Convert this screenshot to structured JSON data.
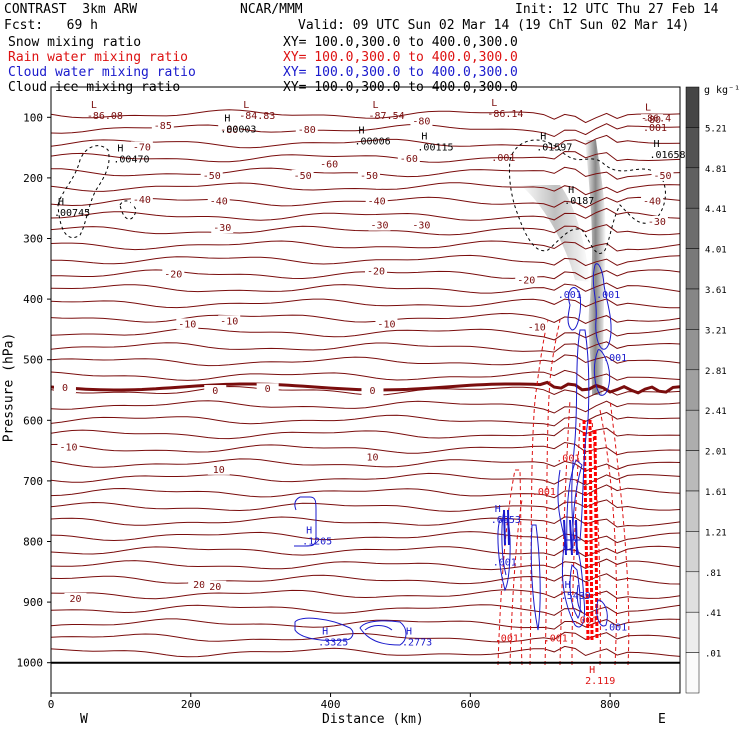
{
  "header": {
    "model": "CONTRAST  3km ARW",
    "org": "NCAR/MMM",
    "init": "Init: 12 UTC Thu 27 Feb 14",
    "fcst": "Fcst:   69 h",
    "valid": "Valid: 09 UTC Sun 02 Mar 14 (19 ChT Sun 02 Mar 14)"
  },
  "fields": [
    {
      "name": "Snow mixing ratio",
      "xy": "XY= 100.0,300.0 to 400.0,300.0",
      "color": "#000000"
    },
    {
      "name": "Rain water mixing ratio",
      "xy": "XY= 100.0,300.0 to 400.0,300.0",
      "color": "#dd1111"
    },
    {
      "name": "Cloud water mixing ratio",
      "xy": "XY= 100.0,300.0 to 400.0,300.0",
      "color": "#1a1acc"
    },
    {
      "name": "Cloud ice mixing ratio",
      "xy": "XY= 100.0,300.0 to 400.0,300.0",
      "color": "#000000"
    }
  ],
  "colorbar": {
    "unit": "g kg⁻¹",
    "labels": [
      "5.21",
      "4.81",
      "4.41",
      "4.01",
      "3.61",
      "3.21",
      "2.81",
      "2.41",
      "2.01",
      "1.61",
      "1.21",
      ".81",
      ".41",
      ".01"
    ]
  },
  "chart_data": {
    "type": "cross-section",
    "xlabel": "Distance (km)",
    "ylabel": "Pressure (hPa)",
    "xlim": [
      0,
      900
    ],
    "ylim": [
      1050,
      50
    ],
    "xticks": [
      "0",
      "200",
      "400",
      "600",
      "800"
    ],
    "xtick_values": [
      0,
      200,
      400,
      600,
      800
    ],
    "yticks": [
      "100",
      "200",
      "300",
      "400",
      "500",
      "600",
      "700",
      "800",
      "900",
      "1000"
    ],
    "ytick_values": [
      100,
      200,
      300,
      400,
      500,
      600,
      700,
      800,
      900,
      1000
    ],
    "west_label": "W",
    "east_label": "E",
    "temperature_contours": [
      {
        "label": "-80",
        "p": 110
      },
      {
        "label": "-70",
        "p": 155
      },
      {
        "label": "-60",
        "p": 178
      },
      {
        "label": "-50",
        "p": 205
      },
      {
        "label": "-40",
        "p": 240
      },
      {
        "label": "-30",
        "p": 285
      },
      {
        "label": "-20",
        "p": 350
      },
      {
        "label": "-10",
        "p": 420
      },
      {
        "label": "0",
        "p": 545
      },
      {
        "label": "10",
        "p": 640
      },
      {
        "label": "20",
        "p": 835
      }
    ],
    "contour_labels": [
      {
        "text": "-80",
        "x": 255,
        "p": 124
      },
      {
        "text": "-85",
        "x": 160,
        "p": 118
      },
      {
        "text": "-80",
        "x": 366,
        "p": 124
      },
      {
        "text": "-80",
        "x": 530,
        "p": 110
      },
      {
        "text": "-80",
        "x": 860,
        "p": 108
      },
      {
        "text": "-70",
        "x": 130,
        "p": 153
      },
      {
        "text": "-60",
        "x": 398,
        "p": 181
      },
      {
        "text": "-60",
        "x": 512,
        "p": 172
      },
      {
        "text": "-50",
        "x": 230,
        "p": 200
      },
      {
        "text": "-50",
        "x": 360,
        "p": 200
      },
      {
        "text": "-50",
        "x": 455,
        "p": 200
      },
      {
        "text": "-50",
        "x": 875,
        "p": 200
      },
      {
        "text": "-40",
        "x": 130,
        "p": 240
      },
      {
        "text": "-40",
        "x": 240,
        "p": 242
      },
      {
        "text": "-40",
        "x": 466,
        "p": 242
      },
      {
        "text": "-40",
        "x": 860,
        "p": 242
      },
      {
        "text": "-30",
        "x": 245,
        "p": 286
      },
      {
        "text": "-30",
        "x": 470,
        "p": 282
      },
      {
        "text": "-30",
        "x": 530,
        "p": 282
      },
      {
        "text": "-30",
        "x": 867,
        "p": 276
      },
      {
        "text": "-20",
        "x": 175,
        "p": 363
      },
      {
        "text": "-20",
        "x": 465,
        "p": 358
      },
      {
        "text": "-20",
        "x": 680,
        "p": 373
      },
      {
        "text": "-10",
        "x": 195,
        "p": 445
      },
      {
        "text": "-10",
        "x": 255,
        "p": 440
      },
      {
        "text": "-10",
        "x": 480,
        "p": 445
      },
      {
        "text": "-10",
        "x": 695,
        "p": 450
      },
      {
        "text": "0",
        "x": 20,
        "p": 550
      },
      {
        "text": "0",
        "x": 235,
        "p": 555
      },
      {
        "text": "0",
        "x": 310,
        "p": 552
      },
      {
        "text": "0",
        "x": 460,
        "p": 555
      },
      {
        "text": "-10",
        "x": 25,
        "p": 648
      },
      {
        "text": "10",
        "x": 240,
        "p": 685
      },
      {
        "text": "10",
        "x": 460,
        "p": 665
      },
      {
        "text": "20",
        "x": 35,
        "p": 898
      },
      {
        "text": "20",
        "x": 212,
        "p": 875
      },
      {
        "text": "20",
        "x": 235,
        "p": 878
      }
    ],
    "extrema": [
      {
        "sym": "L",
        "val": "-86.08",
        "x": 57,
        "p": 88
      },
      {
        "sym": "L",
        "val": "-84.83",
        "x": 275,
        "p": 88
      },
      {
        "sym": "L",
        "val": "-87.54",
        "x": 460,
        "p": 88
      },
      {
        "sym": "L",
        "val": "-86.14",
        "x": 630,
        "p": 85
      },
      {
        "sym": "L",
        "val": "-86.4",
        "x": 850,
        "p": 92
      },
      {
        "sym": "H",
        "val": ".00003",
        "x": 248,
        "p": 110
      },
      {
        "sym": "H",
        "val": ".00006",
        "x": 440,
        "p": 130
      },
      {
        "sym": "H",
        "val": ".00115",
        "x": 530,
        "p": 140
      },
      {
        "sym": "H",
        "val": ".01597",
        "x": 700,
        "p": 140
      },
      {
        "sym": "H",
        "val": ".01658",
        "x": 862,
        "p": 152
      },
      {
        "sym": "H",
        "val": ".00470",
        "x": 95,
        "p": 160
      },
      {
        "sym": "H",
        "val": ".00745",
        "x": 10,
        "p": 248
      },
      {
        "sym": "H",
        "val": ".0187",
        "x": 740,
        "p": 228
      },
      {
        "sym": "H",
        "val": ".6953",
        "x": 635,
        "p": 755
      },
      {
        "sym": "H",
        "val": ".1205",
        "x": 365,
        "p": 790
      },
      {
        "sym": "H",
        "val": ".5439",
        "x": 735,
        "p": 880
      },
      {
        "sym": "H",
        "val": ".3325",
        "x": 388,
        "p": 957
      },
      {
        "sym": "H",
        "val": ".2773",
        "x": 508,
        "p": 957
      },
      {
        "sym": "H",
        "val": "2.119",
        "x": 770,
        "p": 1020
      }
    ],
    "small_labels": [
      {
        "text": ".001",
        "x": 630,
        "p": 172,
        "color": "#7a0d0d"
      },
      {
        "text": ".001",
        "x": 847,
        "p": 123,
        "color": "#7a0d0d"
      },
      {
        "text": ".001",
        "x": 725,
        "p": 398,
        "color": "#1a1acc"
      },
      {
        "text": ".001",
        "x": 780,
        "p": 398,
        "color": "#1a1acc"
      },
      {
        "text": ".001",
        "x": 790,
        "p": 502,
        "color": "#1a1acc"
      },
      {
        "text": ".001",
        "x": 723,
        "p": 668,
        "color": "#dd1111"
      },
      {
        "text": ".001",
        "x": 688,
        "p": 723,
        "color": "#dd1111"
      },
      {
        "text": ".001",
        "x": 632,
        "p": 840,
        "color": "#1a1acc"
      },
      {
        "text": ".001",
        "x": 635,
        "p": 965,
        "color": "#dd1111"
      },
      {
        "text": ".001",
        "x": 705,
        "p": 965,
        "color": "#dd1111"
      },
      {
        "text": ".001",
        "x": 790,
        "p": 947,
        "color": "#1a1acc"
      },
      {
        "text": ".001",
        "x": 748,
        "p": 935,
        "color": "#dd1111"
      }
    ]
  }
}
